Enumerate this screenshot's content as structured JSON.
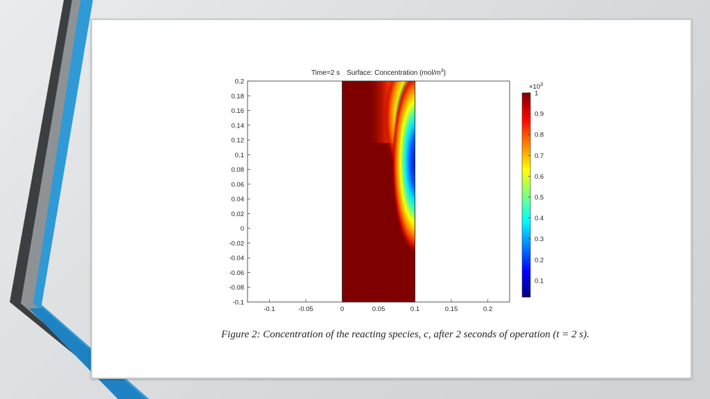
{
  "chart_data": {
    "type": "heatmap",
    "title_time": "Time=2 s",
    "title_surface": "Surface: Concentration (mol/m",
    "title_unit_exp": "3",
    "title_close": ")",
    "xlim": [
      -0.13,
      0.23
    ],
    "ylim": [
      -0.1,
      0.2
    ],
    "x_ticks": [
      "-0.1",
      "-0.05",
      "0",
      "0.05",
      "0.1",
      "0.15",
      "0.2"
    ],
    "x_tick_values": [
      -0.1,
      -0.05,
      0,
      0.05,
      0.1,
      0.15,
      0.2
    ],
    "y_ticks": [
      "0.2",
      "0.18",
      "0.16",
      "0.14",
      "0.12",
      "0.1",
      "0.08",
      "0.06",
      "0.04",
      "0.02",
      "0",
      "-0.02",
      "-0.04",
      "-0.06",
      "-0.08",
      "-0.1"
    ],
    "y_tick_values": [
      0.2,
      0.18,
      0.16,
      0.14,
      0.12,
      0.1,
      0.08,
      0.06,
      0.04,
      0.02,
      0,
      -0.02,
      -0.04,
      -0.06,
      -0.08,
      -0.1
    ],
    "domain_x": [
      0,
      0.1
    ],
    "domain_y": [
      -0.1,
      0.2
    ],
    "colorbar": {
      "scale_base": "×10",
      "scale_exp": "3",
      "ticks": [
        "1",
        "0.9",
        "0.8",
        "0.7",
        "0.6",
        "0.5",
        "0.4",
        "0.3",
        "0.2",
        "0.1"
      ],
      "tick_values": [
        1,
        0.9,
        0.8,
        0.7,
        0.6,
        0.5,
        0.4,
        0.3,
        0.2,
        0.1
      ],
      "range": [
        0.02,
        1
      ],
      "colormap": [
        "#00007f",
        "#0000ff",
        "#00ffff",
        "#ffff00",
        "#ff0000",
        "#7f0000"
      ]
    }
  },
  "caption": "Figure 2: Concentration of the reacting species, c, after 2 seconds of operation (t = 2 s).",
  "colors": {
    "accent_blue": "#2f9ad6",
    "accent_dark": "#3b3f42"
  }
}
